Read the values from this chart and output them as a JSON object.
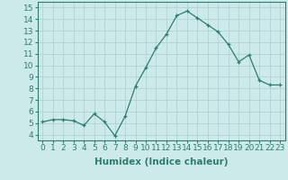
{
  "x": [
    0,
    1,
    2,
    3,
    4,
    5,
    6,
    7,
    8,
    9,
    10,
    11,
    12,
    13,
    14,
    15,
    16,
    17,
    18,
    19,
    20,
    21,
    22,
    23
  ],
  "y": [
    5.1,
    5.3,
    5.3,
    5.2,
    4.8,
    5.8,
    5.1,
    3.9,
    5.6,
    8.2,
    9.8,
    11.5,
    12.7,
    14.3,
    14.7,
    14.1,
    13.5,
    12.9,
    11.8,
    10.3,
    10.9,
    8.7,
    8.3,
    8.3
  ],
  "line_color": "#2e7d6e",
  "marker": "+",
  "bg_color": "#cdeaea",
  "grid_color": "#aacece",
  "xlabel": "Humidex (Indice chaleur)",
  "xlim": [
    -0.5,
    23.5
  ],
  "ylim": [
    3.5,
    15.5
  ],
  "yticks": [
    4,
    5,
    6,
    7,
    8,
    9,
    10,
    11,
    12,
    13,
    14,
    15
  ],
  "xticks": [
    0,
    1,
    2,
    3,
    4,
    5,
    6,
    7,
    8,
    9,
    10,
    11,
    12,
    13,
    14,
    15,
    16,
    17,
    18,
    19,
    20,
    21,
    22,
    23
  ],
  "xtick_labels": [
    "0",
    "1",
    "2",
    "3",
    "4",
    "5",
    "6",
    "7",
    "8",
    "9",
    "10",
    "11",
    "12",
    "13",
    "14",
    "15",
    "16",
    "17",
    "18",
    "19",
    "20",
    "21",
    "22",
    "23"
  ],
  "tick_fontsize": 6.5,
  "label_fontsize": 7.5,
  "label_fontweight": "bold"
}
